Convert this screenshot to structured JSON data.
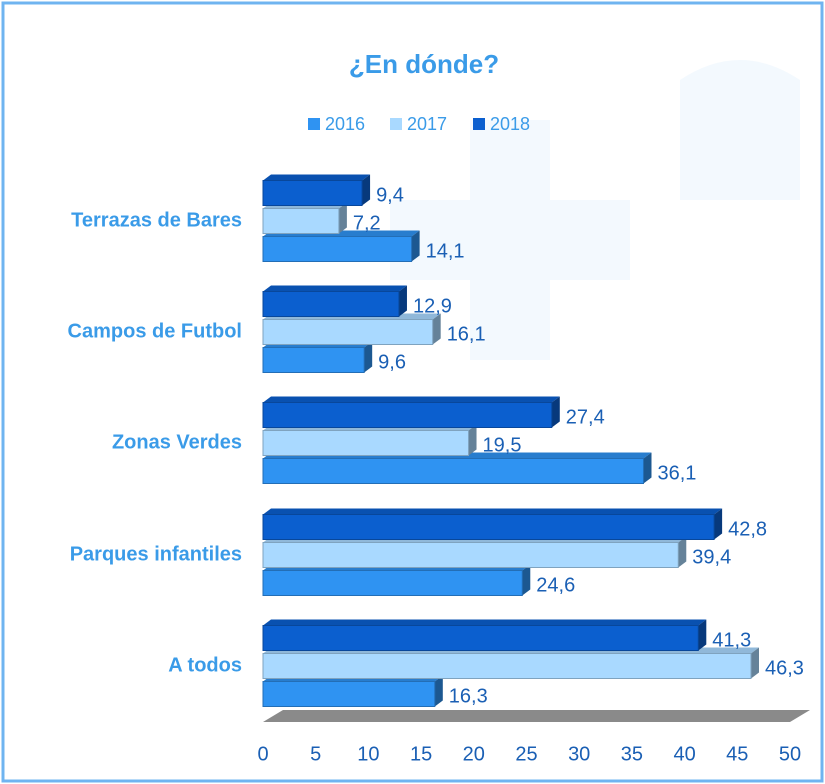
{
  "chart_data": {
    "type": "bar",
    "orientation": "horizontal",
    "title": "¿En dónde?",
    "categories": [
      "Terrazas de Bares",
      "Campos de Futbol",
      "Zonas Verdes",
      "Parques infantiles",
      "A todos"
    ],
    "series": [
      {
        "name": "2016",
        "color": "#2f93f2",
        "values": [
          14.1,
          9.6,
          36.1,
          24.6,
          16.3
        ],
        "value_labels": [
          "14,1",
          "9,6",
          "36,1",
          "24,6",
          "16,3"
        ]
      },
      {
        "name": "2017",
        "color": "#a9d9ff",
        "values": [
          7.2,
          16.1,
          19.5,
          39.4,
          46.3
        ],
        "value_labels": [
          "7,2",
          "16,1",
          "19,5",
          "39,4",
          "46,3"
        ]
      },
      {
        "name": "2018",
        "color": "#0b5fcf",
        "values": [
          9.4,
          12.9,
          27.4,
          42.8,
          41.3
        ],
        "value_labels": [
          "9,4",
          "12,9",
          "27,4",
          "42,8",
          "41,3"
        ]
      }
    ],
    "xlim": [
      0,
      50
    ],
    "xticks": [
      0,
      5,
      10,
      15,
      20,
      25,
      30,
      35,
      40,
      45,
      50
    ],
    "legend": "top"
  }
}
